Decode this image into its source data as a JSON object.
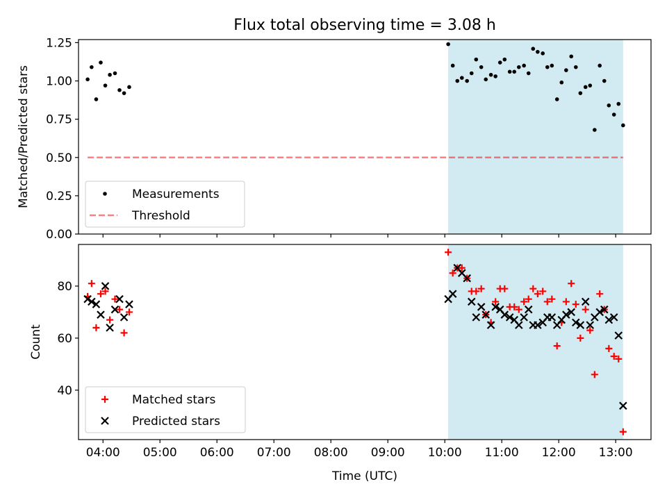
{
  "title": "Flux total observing time = 3.08 h",
  "colors": {
    "highlight": "#add8e6",
    "threshold": "#ff0000",
    "matched": "#ff0000",
    "predicted": "#000000",
    "measurements": "#000000"
  },
  "chart_data": [
    {
      "type": "scatter",
      "ylabel": "Matched/Predicted stars",
      "xlim": [
        3.57,
        13.62
      ],
      "ylim": [
        0.0,
        1.27
      ],
      "yticks": [
        0.0,
        0.25,
        0.5,
        0.75,
        1.0,
        1.25
      ],
      "ytick_labels": [
        "0.00",
        "0.25",
        "0.50",
        "0.75",
        "1.00",
        "1.25"
      ],
      "highlight_span": [
        10.06,
        13.13
      ],
      "legend": {
        "position": "lower-left",
        "entries": [
          "Measurements",
          "Threshold"
        ]
      },
      "threshold": {
        "name": "Threshold",
        "y": 0.5,
        "x": [
          3.73,
          13.13
        ]
      },
      "series": [
        {
          "name": "Measurements",
          "marker": "dot",
          "points": [
            [
              3.73,
              1.01
            ],
            [
              3.8,
              1.09
            ],
            [
              3.88,
              0.88
            ],
            [
              3.96,
              1.12
            ],
            [
              4.04,
              0.97
            ],
            [
              4.12,
              1.04
            ],
            [
              4.21,
              1.05
            ],
            [
              4.29,
              0.94
            ],
            [
              4.37,
              0.92
            ],
            [
              4.46,
              0.96
            ],
            [
              10.06,
              1.24
            ],
            [
              10.14,
              1.1
            ],
            [
              10.22,
              1.0
            ],
            [
              10.3,
              1.02
            ],
            [
              10.39,
              1.0
            ],
            [
              10.47,
              1.05
            ],
            [
              10.55,
              1.14
            ],
            [
              10.64,
              1.09
            ],
            [
              10.72,
              1.01
            ],
            [
              10.81,
              1.04
            ],
            [
              10.89,
              1.03
            ],
            [
              10.97,
              1.12
            ],
            [
              11.05,
              1.14
            ],
            [
              11.14,
              1.06
            ],
            [
              11.22,
              1.06
            ],
            [
              11.3,
              1.09
            ],
            [
              11.39,
              1.1
            ],
            [
              11.47,
              1.05
            ],
            [
              11.55,
              1.21
            ],
            [
              11.63,
              1.19
            ],
            [
              11.72,
              1.18
            ],
            [
              11.8,
              1.09
            ],
            [
              11.88,
              1.1
            ],
            [
              11.97,
              0.88
            ],
            [
              12.05,
              0.99
            ],
            [
              12.13,
              1.07
            ],
            [
              12.22,
              1.16
            ],
            [
              12.3,
              1.09
            ],
            [
              12.38,
              0.92
            ],
            [
              12.47,
              0.96
            ],
            [
              12.55,
              0.97
            ],
            [
              12.63,
              0.68
            ],
            [
              12.72,
              1.1
            ],
            [
              12.8,
              1.0
            ],
            [
              12.88,
              0.84
            ],
            [
              12.97,
              0.78
            ],
            [
              13.05,
              0.85
            ],
            [
              13.13,
              0.71
            ]
          ]
        }
      ]
    },
    {
      "type": "scatter",
      "ylabel": "Count",
      "xlabel": "Time (UTC)",
      "xlim": [
        3.57,
        13.62
      ],
      "ylim": [
        21,
        96
      ],
      "yticks": [
        40,
        60,
        80
      ],
      "ytick_labels": [
        "40",
        "60",
        "80"
      ],
      "xticks": [
        4,
        5,
        6,
        7,
        8,
        9,
        10,
        11,
        12,
        13
      ],
      "xtick_labels": [
        "04:00",
        "05:00",
        "06:00",
        "07:00",
        "08:00",
        "09:00",
        "10:00",
        "11:00",
        "12:00",
        "13:00"
      ],
      "highlight_span": [
        10.06,
        13.13
      ],
      "legend": {
        "position": "lower-left",
        "entries": [
          "Matched stars",
          "Predicted stars"
        ]
      },
      "series": [
        {
          "name": "Matched stars",
          "marker": "plus",
          "points": [
            [
              3.73,
              76
            ],
            [
              3.8,
              81
            ],
            [
              3.88,
              64
            ],
            [
              3.96,
              77
            ],
            [
              4.04,
              78
            ],
            [
              4.12,
              67
            ],
            [
              4.21,
              75
            ],
            [
              4.29,
              71
            ],
            [
              4.37,
              62
            ],
            [
              4.46,
              70
            ],
            [
              10.06,
              93
            ],
            [
              10.14,
              85
            ],
            [
              10.22,
              87
            ],
            [
              10.3,
              87
            ],
            [
              10.39,
              83
            ],
            [
              10.47,
              78
            ],
            [
              10.55,
              78
            ],
            [
              10.64,
              79
            ],
            [
              10.72,
              69
            ],
            [
              10.81,
              66
            ],
            [
              10.89,
              74
            ],
            [
              10.97,
              79
            ],
            [
              11.05,
              79
            ],
            [
              11.14,
              72
            ],
            [
              11.22,
              72
            ],
            [
              11.3,
              71
            ],
            [
              11.39,
              74
            ],
            [
              11.47,
              75
            ],
            [
              11.55,
              79
            ],
            [
              11.63,
              77
            ],
            [
              11.72,
              78
            ],
            [
              11.8,
              74
            ],
            [
              11.88,
              75
            ],
            [
              11.97,
              57
            ],
            [
              12.05,
              66
            ],
            [
              12.13,
              74
            ],
            [
              12.22,
              81
            ],
            [
              12.3,
              73
            ],
            [
              12.38,
              60
            ],
            [
              12.47,
              71
            ],
            [
              12.55,
              63
            ],
            [
              12.63,
              46
            ],
            [
              12.72,
              77
            ],
            [
              12.8,
              71
            ],
            [
              12.88,
              56
            ],
            [
              12.97,
              53
            ],
            [
              13.05,
              52
            ],
            [
              13.13,
              24
            ]
          ]
        },
        {
          "name": "Predicted stars",
          "marker": "x",
          "points": [
            [
              3.73,
              75
            ],
            [
              3.8,
              74
            ],
            [
              3.88,
              73
            ],
            [
              3.96,
              69
            ],
            [
              4.04,
              80
            ],
            [
              4.12,
              64
            ],
            [
              4.21,
              71
            ],
            [
              4.29,
              75
            ],
            [
              4.37,
              68
            ],
            [
              4.46,
              73
            ],
            [
              10.06,
              75
            ],
            [
              10.14,
              77
            ],
            [
              10.22,
              87
            ],
            [
              10.3,
              85
            ],
            [
              10.39,
              83
            ],
            [
              10.47,
              74
            ],
            [
              10.55,
              68
            ],
            [
              10.64,
              72
            ],
            [
              10.72,
              69
            ],
            [
              10.81,
              65
            ],
            [
              10.89,
              72
            ],
            [
              10.97,
              71
            ],
            [
              11.05,
              69
            ],
            [
              11.14,
              68
            ],
            [
              11.22,
              67
            ],
            [
              11.3,
              65
            ],
            [
              11.39,
              68
            ],
            [
              11.47,
              71
            ],
            [
              11.55,
              65
            ],
            [
              11.63,
              65
            ],
            [
              11.72,
              66
            ],
            [
              11.8,
              68
            ],
            [
              11.88,
              68
            ],
            [
              11.97,
              65
            ],
            [
              12.05,
              67
            ],
            [
              12.13,
              69
            ],
            [
              12.22,
              70
            ],
            [
              12.3,
              66
            ],
            [
              12.38,
              65
            ],
            [
              12.47,
              74
            ],
            [
              12.55,
              65
            ],
            [
              12.63,
              68
            ],
            [
              12.72,
              70
            ],
            [
              12.8,
              71
            ],
            [
              12.88,
              67
            ],
            [
              12.97,
              68
            ],
            [
              13.05,
              61
            ],
            [
              13.13,
              34
            ]
          ]
        }
      ]
    }
  ]
}
